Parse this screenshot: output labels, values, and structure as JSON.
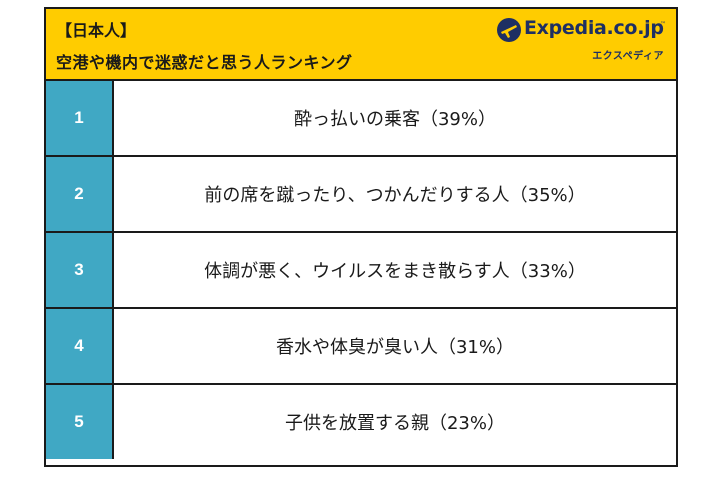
{
  "header": {
    "tag": "【日本人】",
    "subtitle": "空港や機内で迷惑だと思う人ランキング",
    "background_color": "#ffcc00"
  },
  "logo": {
    "brand": "Expedia.co.jp",
    "trademark": "™",
    "katakana": "エクスペディア",
    "icon": "plane-globe-icon",
    "color": "#1e2f63"
  },
  "ranking": {
    "rank_color": "#40a8c4",
    "items": [
      {
        "rank": "1",
        "text": "酔っ払いの乗客（39%）"
      },
      {
        "rank": "2",
        "text": "前の席を蹴ったり、つかんだりする人（35%）"
      },
      {
        "rank": "3",
        "text": "体調が悪く、ウイルスをまき散らす人（33%）"
      },
      {
        "rank": "4",
        "text": "香水や体臭が臭い人（31%）"
      },
      {
        "rank": "5",
        "text": "子供を放置する親（23%）"
      }
    ]
  }
}
